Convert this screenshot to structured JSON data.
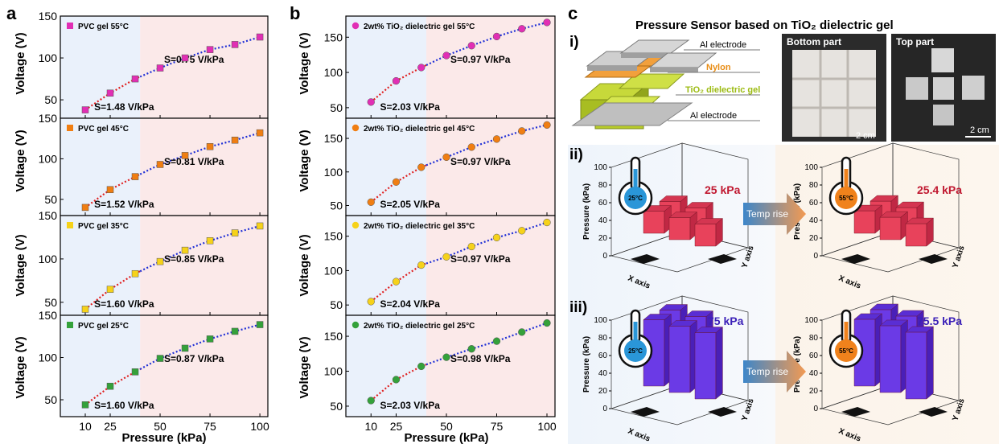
{
  "panel_a": {
    "label": "a",
    "xlabel": "Pressure (kPa)",
    "ylabel": "Voltage (V)",
    "xticks": [
      "10",
      "25",
      "50",
      "75",
      "100"
    ],
    "yticks": [
      "50",
      "100",
      "150"
    ]
  },
  "panel_b": {
    "label": "b",
    "xlabel": "Pressure (kPa)",
    "ylabel": "Voltage (V)",
    "xticks": [
      "10",
      "25",
      "50",
      "75",
      "100"
    ],
    "yticks": [
      "50",
      "100",
      "150"
    ]
  },
  "panel_c": {
    "label": "c",
    "title": "Pressure Sensor based on TiO₂ dielectric gel",
    "sub_i": "i)",
    "sub_ii": "ii)",
    "sub_iii": "iii)",
    "callouts": [
      "Al electrode",
      "Nylon",
      "TiO₂ dielectric gel",
      "Al electrode"
    ],
    "photo_bottom": "Bottom part",
    "photo_top": "Top part",
    "scale_bar": "2 cm",
    "temp_rise": "Temp rise",
    "z_label": "Pressure (kPa)",
    "x_axis": "X axis",
    "y_axis": "Y axis",
    "z_ticks": [
      "0",
      "20",
      "40",
      "60",
      "80",
      "100"
    ],
    "ii_left_value": "25 kPa",
    "ii_right_value": "25.4 kPa",
    "iii_left_value": "75 kPa",
    "iii_right_value": "75.5 kPa",
    "thermo_left": "25°C",
    "thermo_right": "55°C"
  },
  "chart_data": [
    {
      "type": "line",
      "panel": "a",
      "title": "PVC gel 55°C",
      "xlabel": "Pressure (kPa)",
      "ylabel": "Voltage (V)",
      "xlim": [
        0,
        104
      ],
      "ylim": [
        28,
        150
      ],
      "x": [
        12.5,
        25,
        37.5,
        50,
        62.5,
        75,
        87.5,
        100
      ],
      "y": [
        38,
        58,
        75,
        88,
        100,
        110,
        116,
        125
      ],
      "marker_color": "#e12fb4",
      "fits": [
        {
          "label": "S=1.48 V/kPa",
          "color": "#e02020",
          "x": [
            12.5,
            40
          ]
        },
        {
          "label": "S=0.75 V/kPa",
          "color": "#1f2fd6",
          "x": [
            40,
            100
          ]
        }
      ]
    },
    {
      "type": "line",
      "panel": "a",
      "title": "PVC gel 45°C",
      "xlabel": "Pressure (kPa)",
      "ylabel": "Voltage (V)",
      "xlim": [
        0,
        104
      ],
      "ylim": [
        30,
        150
      ],
      "x": [
        12.5,
        25,
        37.5,
        50,
        62.5,
        75,
        87.5,
        100
      ],
      "y": [
        40,
        62,
        78,
        93,
        104,
        115,
        123,
        132
      ],
      "marker_color": "#f07e12",
      "fits": [
        {
          "label": "S=1.52 V/kPa",
          "color": "#e02020",
          "x": [
            12.5,
            40
          ]
        },
        {
          "label": "S=0.81 V/kPa",
          "color": "#1f2fd6",
          "x": [
            40,
            100
          ]
        }
      ]
    },
    {
      "type": "line",
      "panel": "a",
      "title": "PVC gel 35°C",
      "xlabel": "Pressure (kPa)",
      "ylabel": "Voltage (V)",
      "xlim": [
        0,
        104
      ],
      "ylim": [
        35,
        150
      ],
      "x": [
        12.5,
        25,
        37.5,
        50,
        62.5,
        75,
        87.5,
        100
      ],
      "y": [
        42,
        65,
        83,
        97,
        110,
        121,
        130,
        138
      ],
      "marker_color": "#f6d21a",
      "fits": [
        {
          "label": "S=1.60 V/kPa",
          "color": "#e02020",
          "x": [
            12.5,
            40
          ]
        },
        {
          "label": "S=0.85 V/kPa",
          "color": "#1f2fd6",
          "x": [
            40,
            100
          ]
        }
      ]
    },
    {
      "type": "line",
      "panel": "a",
      "title": "PVC gel 25°C",
      "xlabel": "Pressure (kPa)",
      "ylabel": "Voltage (V)",
      "xlim": [
        0,
        104
      ],
      "ylim": [
        30,
        150
      ],
      "x": [
        12.5,
        25,
        37.5,
        50,
        62.5,
        75,
        87.5,
        100
      ],
      "y": [
        44,
        66,
        83,
        99,
        111,
        122,
        131,
        139
      ],
      "marker_color": "#34a13a",
      "fits": [
        {
          "label": "S=1.60 V/kPa",
          "color": "#e02020",
          "x": [
            12.5,
            40
          ]
        },
        {
          "label": "S=0.87 V/kPa",
          "color": "#1f2fd6",
          "x": [
            40,
            100
          ]
        }
      ]
    },
    {
      "type": "line",
      "panel": "b",
      "title": "2wt% TiO₂ dielectric gel 55°C",
      "xlabel": "Pressure (kPa)",
      "ylabel": "Voltage (V)",
      "xlim": [
        0,
        104
      ],
      "ylim": [
        35,
        180
      ],
      "x": [
        12.5,
        25,
        37.5,
        50,
        62.5,
        75,
        87.5,
        100
      ],
      "y": [
        58,
        88,
        107,
        124,
        138,
        151,
        162,
        171
      ],
      "marker_color": "#e12fb4",
      "fits": [
        {
          "label": "S=2.03 V/kPa",
          "color": "#e02020",
          "x": [
            12.5,
            40
          ]
        },
        {
          "label": "S=0.97 V/kPa",
          "color": "#1f2fd6",
          "x": [
            40,
            100
          ]
        }
      ]
    },
    {
      "type": "line",
      "panel": "b",
      "title": "2wt% TiO₂ dielectric gel 45°C",
      "xlabel": "Pressure (kPa)",
      "ylabel": "Voltage (V)",
      "xlim": [
        0,
        104
      ],
      "ylim": [
        35,
        180
      ],
      "x": [
        12.5,
        25,
        37.5,
        50,
        62.5,
        75,
        87.5,
        100
      ],
      "y": [
        55,
        85,
        107,
        122,
        137,
        149,
        161,
        170
      ],
      "marker_color": "#f07e12",
      "fits": [
        {
          "label": "S=2.05 V/kPa",
          "color": "#e02020",
          "x": [
            12.5,
            40
          ]
        },
        {
          "label": "S=0.97 V/kPa",
          "color": "#1f2fd6",
          "x": [
            40,
            100
          ]
        }
      ]
    },
    {
      "type": "line",
      "panel": "b",
      "title": "2wt% TiO₂ dielectric gel 35°C",
      "xlabel": "Pressure (kPa)",
      "ylabel": "Voltage (V)",
      "xlim": [
        0,
        104
      ],
      "ylim": [
        35,
        180
      ],
      "x": [
        12.5,
        25,
        37.5,
        50,
        62.5,
        75,
        87.5,
        100
      ],
      "y": [
        55,
        84,
        108,
        120,
        135,
        148,
        158,
        170
      ],
      "marker_color": "#f6d21a",
      "fits": [
        {
          "label": "S=2.04 V/kPa",
          "color": "#e02020",
          "x": [
            12.5,
            40
          ]
        },
        {
          "label": "S=0.97 V/kPa",
          "color": "#1f2fd6",
          "x": [
            40,
            100
          ]
        }
      ]
    },
    {
      "type": "line",
      "panel": "b",
      "title": "2wt% TiO₂ dielectric gel 25°C",
      "xlabel": "Pressure (kPa)",
      "ylabel": "Voltage (V)",
      "xlim": [
        0,
        104
      ],
      "ylim": [
        35,
        180
      ],
      "x": [
        12.5,
        25,
        37.5,
        50,
        62.5,
        75,
        87.5,
        100
      ],
      "y": [
        58,
        88,
        107,
        120,
        132,
        143,
        156,
        169
      ],
      "marker_color": "#34a13a",
      "fits": [
        {
          "label": "S=2.03 V/kPa",
          "color": "#e02020",
          "x": [
            12.5,
            40
          ]
        },
        {
          "label": "S=0.98 V/kPa",
          "color": "#1f2fd6",
          "x": [
            40,
            100
          ]
        }
      ]
    }
  ]
}
